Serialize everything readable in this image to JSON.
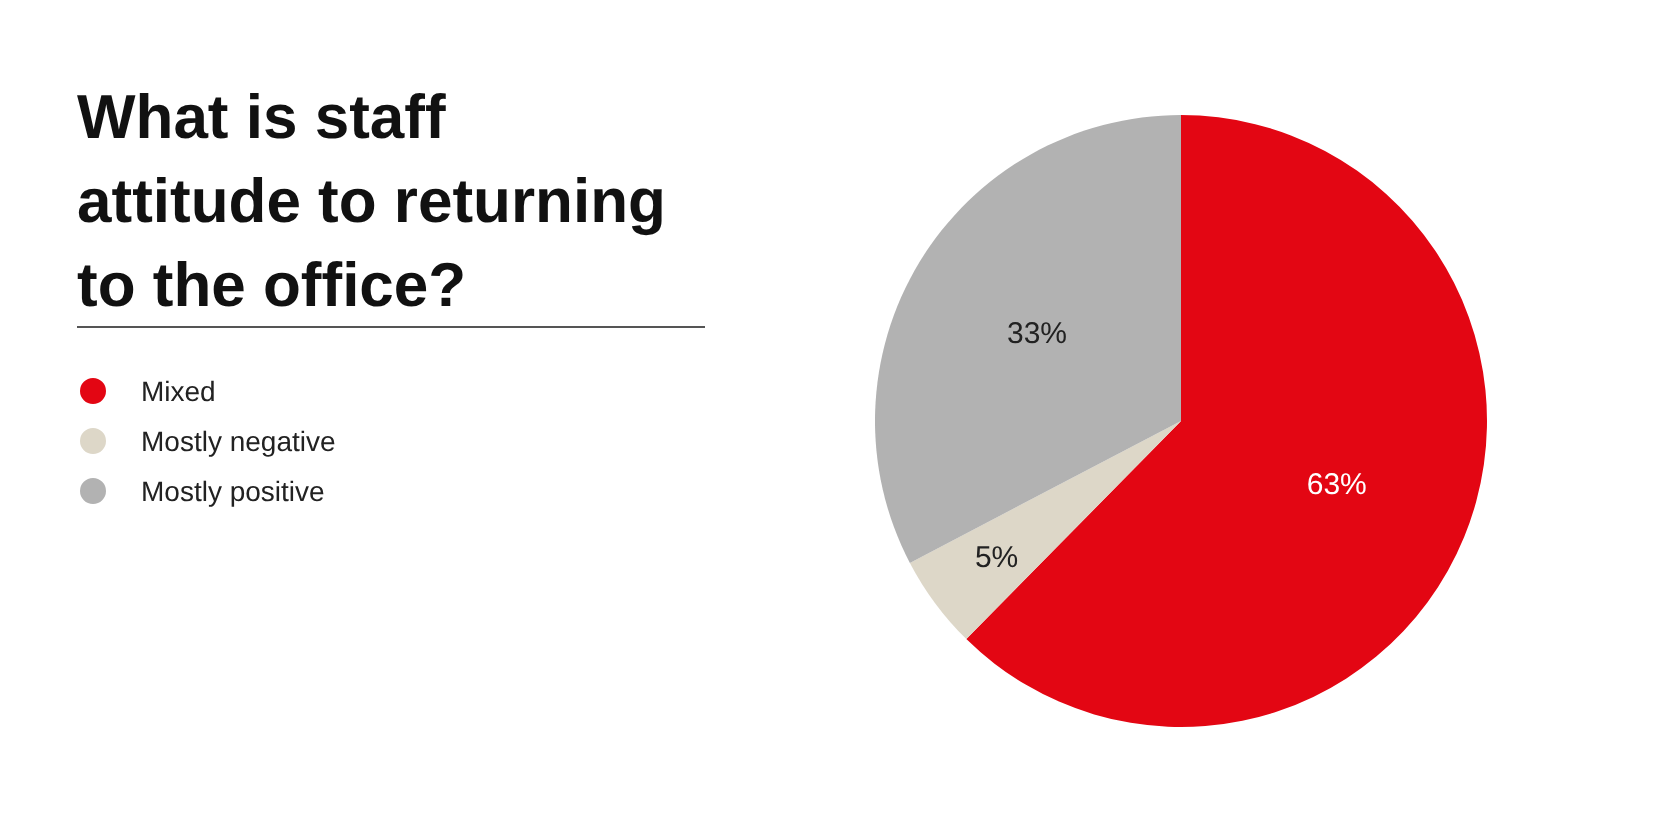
{
  "chart_data": {
    "type": "pie",
    "title": "What is staff attitude to returning to the office?",
    "categories": [
      "Mixed",
      "Mostly negative",
      "Mostly positive"
    ],
    "values": [
      63,
      5,
      33
    ],
    "colors": [
      "#e30613",
      "#ddd7c8",
      "#b2b2b2"
    ],
    "value_labels": [
      "63%",
      "5%",
      "33%"
    ],
    "legend": "left"
  }
}
